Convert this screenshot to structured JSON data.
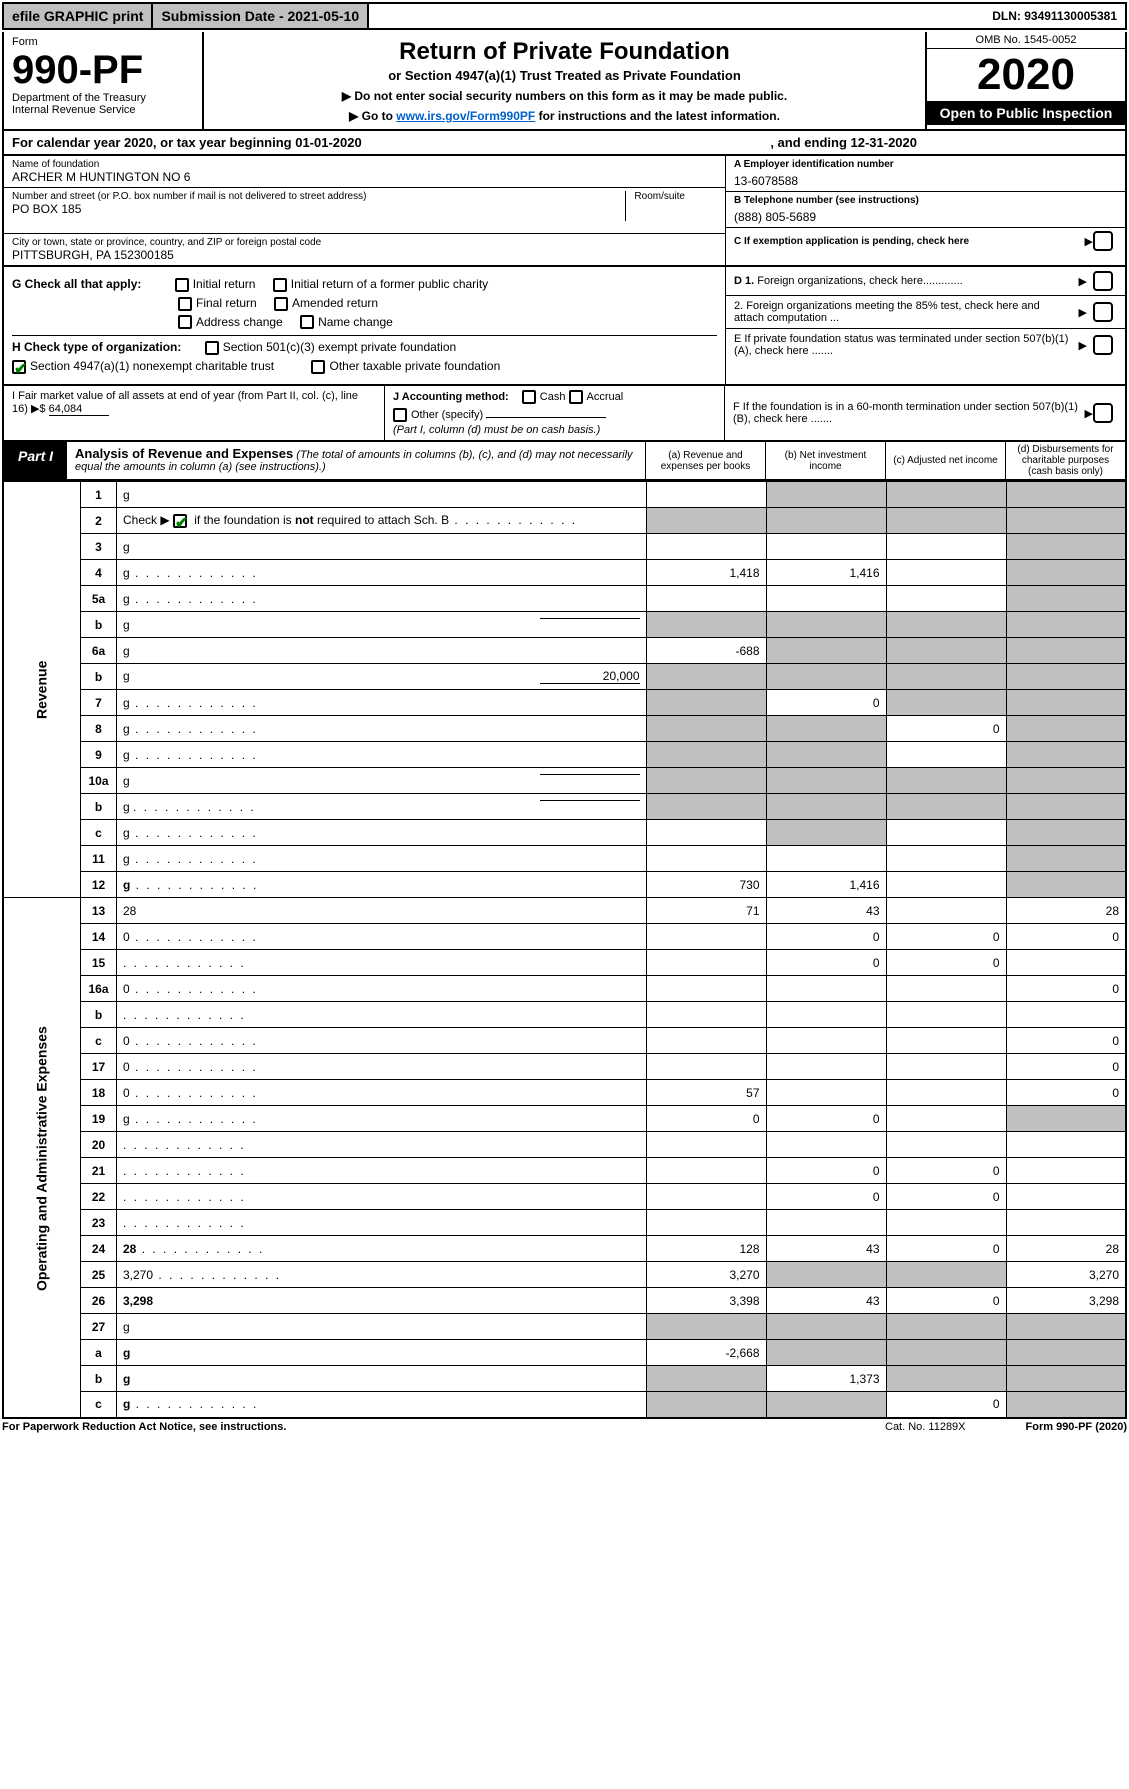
{
  "topbar": {
    "efile": "efile GRAPHIC print",
    "submission_label": "Submission Date - 2021-05-10",
    "dln_label": "DLN: 93491130005381"
  },
  "header": {
    "form_word": "Form",
    "form_number": "990-PF",
    "dept": "Department of the Treasury",
    "irs": "Internal Revenue Service",
    "title": "Return of Private Foundation",
    "subtitle": "or Section 4947(a)(1) Trust Treated as Private Foundation",
    "note1": "▶ Do not enter social security numbers on this form as it may be made public.",
    "note2_pre": "▶ Go to ",
    "note2_link": "www.irs.gov/Form990PF",
    "note2_post": " for instructions and the latest information.",
    "omb": "OMB No. 1545-0052",
    "year": "2020",
    "open": "Open to Public Inspection"
  },
  "cal": {
    "text_a": "For calendar year 2020, or tax year beginning 01-01-2020",
    "text_b": ", and ending 12-31-2020"
  },
  "id": {
    "name_label": "Name of foundation",
    "name": "ARCHER M HUNTINGTON NO 6",
    "addr_label": "Number and street (or P.O. box number if mail is not delivered to street address)",
    "addr": "PO BOX 185",
    "room_label": "Room/suite",
    "city_label": "City or town, state or province, country, and ZIP or foreign postal code",
    "city": "PITTSBURGH, PA  152300185",
    "a_label": "A Employer identification number",
    "a_val": "13-6078588",
    "b_label": "B Telephone number (see instructions)",
    "b_val": "(888) 805-5689",
    "c_label": "C If exemption application is pending, check here"
  },
  "g": {
    "label": "G Check all that apply:",
    "opts": [
      "Initial return",
      "Initial return of a former public charity",
      "Final return",
      "Amended return",
      "Address change",
      "Name change"
    ]
  },
  "h": {
    "label": "H Check type of organization:",
    "opt1": "Section 501(c)(3) exempt private foundation",
    "opt2": "Section 4947(a)(1) nonexempt charitable trust",
    "opt3": "Other taxable private foundation"
  },
  "i": {
    "label": "I Fair market value of all assets at end of year (from Part II, col. (c), line 16) ▶$",
    "val": "64,084"
  },
  "j": {
    "label": "J Accounting method:",
    "cash": "Cash",
    "accrual": "Accrual",
    "other": "Other (specify)",
    "note": "(Part I, column (d) must be on cash basis.)"
  },
  "d": {
    "d1": "D 1. Foreign organizations, check here.............",
    "d2": "2. Foreign organizations meeting the 85% test, check here and attach computation ..."
  },
  "e": {
    "txt": "E  If private foundation status was terminated under section 507(b)(1)(A), check here ......."
  },
  "f": {
    "txt": "F  If the foundation is in a 60-month termination under section 507(b)(1)(B), check here ......."
  },
  "part1": {
    "tab": "Part I",
    "title": "Analysis of Revenue and Expenses",
    "note": "(The total of amounts in columns (b), (c), and (d) may not necessarily equal the amounts in column (a) (see instructions).)",
    "cols": {
      "a": "(a)   Revenue and expenses per books",
      "b": "(b)   Net investment income",
      "c": "(c)   Adjusted net income",
      "d": "(d)   Disbursements for charitable purposes (cash basis only)"
    }
  },
  "sidelabels": {
    "rev": "Revenue",
    "exp": "Operating and Administrative Expenses"
  },
  "rows": [
    {
      "n": "1",
      "d": "g",
      "a": "",
      "b": "g",
      "c": "g"
    },
    {
      "n": "2",
      "d": "g",
      "dots": true,
      "a": "g",
      "b": "g",
      "c": "g",
      "checkmark": true
    },
    {
      "n": "3",
      "d": "g",
      "a": "",
      "b": "",
      "c": ""
    },
    {
      "n": "4",
      "d": "g",
      "dots": true,
      "a": "1,418",
      "b": "1,416",
      "c": ""
    },
    {
      "n": "5a",
      "d": "g",
      "dots": true,
      "a": "",
      "b": "",
      "c": ""
    },
    {
      "n": "b",
      "d": "g",
      "under": true,
      "a": "g",
      "b": "g",
      "c": "g"
    },
    {
      "n": "6a",
      "d": "g",
      "a": "-688",
      "b": "g",
      "c": "g"
    },
    {
      "n": "b",
      "d": "g",
      "under": true,
      "uval": "20,000",
      "a": "g",
      "b": "g",
      "c": "g"
    },
    {
      "n": "7",
      "d": "g",
      "dots": true,
      "a": "g",
      "b": "0",
      "c": "g"
    },
    {
      "n": "8",
      "d": "g",
      "dots": true,
      "a": "g",
      "b": "g",
      "c": "0"
    },
    {
      "n": "9",
      "d": "g",
      "dots": true,
      "a": "g",
      "b": "g",
      "c": ""
    },
    {
      "n": "10a",
      "d": "g",
      "under": true,
      "a": "g",
      "b": "g",
      "c": "g"
    },
    {
      "n": "b",
      "d": "g",
      "dots": true,
      "under": true,
      "a": "g",
      "b": "g",
      "c": "g"
    },
    {
      "n": "c",
      "d": "g",
      "dots": true,
      "a": "",
      "b": "g",
      "c": ""
    },
    {
      "n": "11",
      "d": "g",
      "dots": true,
      "a": "",
      "b": "",
      "c": ""
    },
    {
      "n": "12",
      "d": "g",
      "dots": true,
      "bold": true,
      "a": "730",
      "b": "1,416",
      "c": ""
    },
    {
      "n": "13",
      "d": "28",
      "a": "71",
      "b": "43",
      "c": ""
    },
    {
      "n": "14",
      "d": "0",
      "dots": true,
      "a": "",
      "b": "0",
      "c": "0"
    },
    {
      "n": "15",
      "d": "",
      "dots": true,
      "a": "",
      "b": "0",
      "c": "0"
    },
    {
      "n": "16a",
      "d": "0",
      "dots": true,
      "a": "",
      "b": "",
      "c": ""
    },
    {
      "n": "b",
      "d": "",
      "dots": true,
      "a": "",
      "b": "",
      "c": ""
    },
    {
      "n": "c",
      "d": "0",
      "dots": true,
      "a": "",
      "b": "",
      "c": ""
    },
    {
      "n": "17",
      "d": "0",
      "dots": true,
      "a": "",
      "b": "",
      "c": ""
    },
    {
      "n": "18",
      "d": "0",
      "dots": true,
      "a": "57",
      "b": "",
      "c": ""
    },
    {
      "n": "19",
      "d": "g",
      "dots": true,
      "a": "0",
      "b": "0",
      "c": ""
    },
    {
      "n": "20",
      "d": "",
      "dots": true,
      "a": "",
      "b": "",
      "c": ""
    },
    {
      "n": "21",
      "d": "",
      "dots": true,
      "a": "",
      "b": "0",
      "c": "0"
    },
    {
      "n": "22",
      "d": "",
      "dots": true,
      "a": "",
      "b": "0",
      "c": "0"
    },
    {
      "n": "23",
      "d": "",
      "dots": true,
      "a": "",
      "b": "",
      "c": ""
    },
    {
      "n": "24",
      "d": "28",
      "dots": true,
      "bold": true,
      "a": "128",
      "b": "43",
      "c": "0"
    },
    {
      "n": "25",
      "d": "3,270",
      "dots": true,
      "a": "3,270",
      "b": "g",
      "c": "g"
    },
    {
      "n": "26",
      "d": "3,298",
      "bold": true,
      "a": "3,398",
      "b": "43",
      "c": "0"
    },
    {
      "n": "27",
      "d": "g",
      "a": "g",
      "b": "g",
      "c": "g"
    },
    {
      "n": "a",
      "d": "g",
      "bold": true,
      "a": "-2,668",
      "b": "g",
      "c": "g"
    },
    {
      "n": "b",
      "d": "g",
      "bold": true,
      "a": "g",
      "b": "1,373",
      "c": "g"
    },
    {
      "n": "c",
      "d": "g",
      "dots": true,
      "bold": true,
      "a": "g",
      "b": "g",
      "c": "0"
    }
  ],
  "footer": {
    "left": "For Paperwork Reduction Act Notice, see instructions.",
    "mid": "Cat. No. 11289X",
    "right": "Form 990-PF (2020)"
  },
  "colors": {
    "grey": "#c0c0c0",
    "link": "#0060d0",
    "check": "#008000"
  }
}
